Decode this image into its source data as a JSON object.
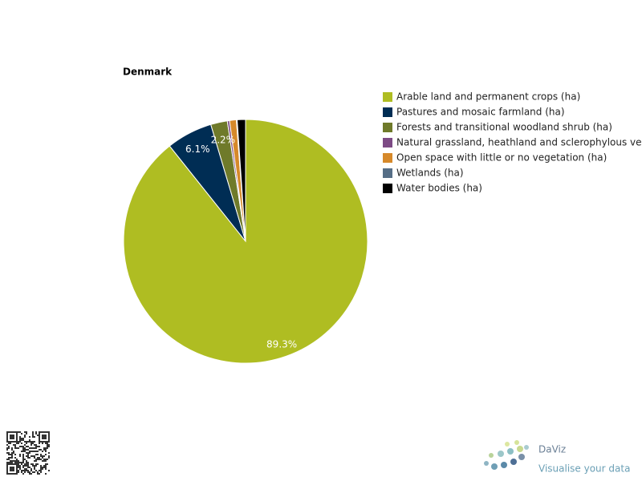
{
  "chart_data": {
    "type": "pie",
    "title": "Denmark",
    "categories": [
      "Arable land and permanent crops (ha)",
      "Pastures and mosaic farmland (ha)",
      "Forests and transitional woodland shrub (ha)",
      "Natural grassland, heathland and sclerophylous veg",
      "Open space with little or no vegetation (ha)",
      "Wetlands (ha)",
      "Water bodies (ha)"
    ],
    "values": [
      89.3,
      6.1,
      2.2,
      0.3,
      0.9,
      0.1,
      1.1
    ],
    "value_labels": [
      "89.3%",
      "6.1%",
      "2.2%",
      null,
      null,
      null,
      null
    ],
    "colors": [
      "#afbd22",
      "#002d54",
      "#6f7a2a",
      "#7d4b85",
      "#d6892a",
      "#566e86",
      "#000000"
    ],
    "legend": "right"
  },
  "footer": {
    "logo": "DaViz",
    "tagline": "Visualise your data"
  }
}
